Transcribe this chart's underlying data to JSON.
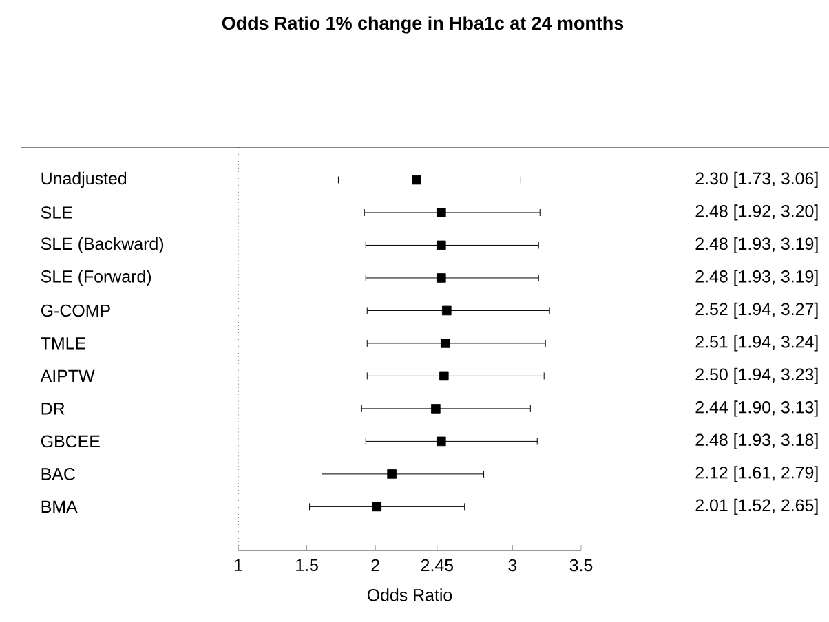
{
  "chart_data": {
    "type": "scatter",
    "orientation": "horizontal",
    "title": "Odds Ratio 1% change in Hba1c at 24 months",
    "xlabel": "Odds Ratio",
    "categories": [
      "Unadjusted",
      "SLE",
      "SLE (Backward)",
      "SLE (Forward)",
      "G-COMP",
      "TMLE",
      "AIPTW",
      "DR",
      "GBCEE",
      "BAC",
      "BMA"
    ],
    "values": [
      2.3,
      2.48,
      2.48,
      2.48,
      2.52,
      2.51,
      2.5,
      2.44,
      2.48,
      2.12,
      2.01
    ],
    "errors": [
      [
        1.73,
        3.06
      ],
      [
        1.92,
        3.2
      ],
      [
        1.93,
        3.19
      ],
      [
        1.93,
        3.19
      ],
      [
        1.94,
        3.27
      ],
      [
        1.94,
        3.24
      ],
      [
        1.94,
        3.23
      ],
      [
        1.9,
        3.13
      ],
      [
        1.93,
        3.18
      ],
      [
        1.61,
        2.79
      ],
      [
        1.52,
        2.65
      ]
    ],
    "value_labels": [
      "2.30 [1.73, 3.06]",
      "2.48 [1.92, 3.20]",
      "2.48 [1.93, 3.19]",
      "2.48 [1.93, 3.19]",
      "2.52 [1.94, 3.27]",
      "2.51 [1.94, 3.24]",
      "2.50 [1.94, 3.23]",
      "2.44 [1.90, 3.13]",
      "2.48 [1.93, 3.18]",
      "2.12 [1.61, 2.79]",
      "2.01 [1.52, 2.65]"
    ],
    "color": "#000000",
    "marker": "square",
    "xlim": [
      1,
      3.5
    ],
    "xticks": [
      1,
      1.5,
      2,
      2.45,
      3,
      3.5
    ],
    "ref_lines": [
      {
        "axis": "x",
        "value": 1,
        "line_style": "dotted"
      }
    ]
  }
}
